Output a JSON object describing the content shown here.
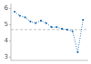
{
  "chart_data": {
    "type": "line",
    "x": [
      2010,
      2011,
      2012,
      2013,
      2014,
      2015,
      2016,
      2017,
      2018,
      2019,
      2020,
      2021,
      2022,
      2023
    ],
    "values": [
      5.8,
      5.55,
      5.45,
      5.2,
      5.1,
      5.25,
      5.1,
      4.85,
      4.85,
      4.75,
      4.7,
      4.6,
      3.3,
      5.3
    ],
    "color": "#1a6fbd",
    "marker": "circle",
    "line_style": "dotted",
    "reference_line": {
      "value": 4.7,
      "color": "#aaaaaa",
      "line_style": "dashed"
    },
    "xlim": [
      2009.3,
      2024.0
    ],
    "xticks": [],
    "ylim": [
      2.8,
      6.3
    ],
    "yticks": [
      3,
      4,
      5,
      6
    ],
    "tick_labels": "y",
    "grid": false
  }
}
